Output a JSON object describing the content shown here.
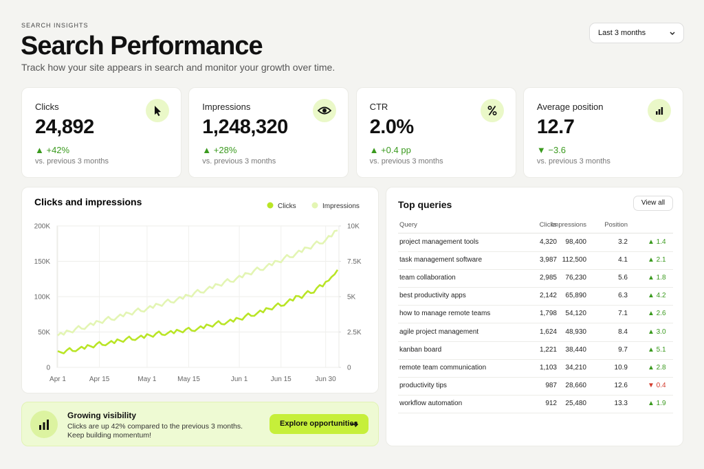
{
  "header": {
    "eyebrow": "SEARCH INSIGHTS",
    "title": "Search Performance",
    "subtitle": "Track how your site appears in search and monitor your growth over time."
  },
  "date_filter": "Last 3 months",
  "kpis": [
    {
      "label": "Clicks",
      "value": "24,892",
      "change": "▲ +42%",
      "comparison": "vs. previous 3 months"
    },
    {
      "label": "Impressions",
      "value": "1,248,320",
      "change": "▲ +28%",
      "comparison": "vs. previous 3 months"
    },
    {
      "label": "CTR",
      "value": "2.0%",
      "change": "▲ +0.4 pp",
      "comparison": "vs. previous 3 months"
    },
    {
      "label": "Average position",
      "value": "12.7",
      "change": "▼ −3.6",
      "comparison": "vs. previous 3 months"
    }
  ],
  "chart_data": {
    "type": "line",
    "title": "Clicks and impressions",
    "categories": [
      "Apr 1",
      null,
      null,
      null,
      null,
      null,
      null,
      null,
      null,
      null,
      null,
      null,
      null,
      null,
      "Apr 15",
      null,
      null,
      null,
      null,
      null,
      null,
      null,
      null,
      null,
      null,
      null,
      null,
      null,
      null,
      null,
      "May 1",
      null,
      null,
      null,
      null,
      null,
      null,
      null,
      null,
      null,
      null,
      null,
      null,
      null,
      "May 15",
      null,
      null,
      null,
      null,
      null,
      null,
      null,
      null,
      null,
      null,
      null,
      null,
      null,
      null,
      null,
      null,
      "Jun 1",
      null,
      null,
      null,
      null,
      null,
      null,
      null,
      null,
      null,
      null,
      null,
      null,
      null,
      "Jun 15",
      null,
      null,
      null,
      null,
      null,
      null,
      null,
      null,
      null,
      null,
      null,
      null,
      null,
      null,
      "Jun 30",
      null,
      null,
      null,
      null
    ],
    "series": [
      {
        "name": "Clicks",
        "color": "#b9e526",
        "axis": "y2",
        "values": [
          1150,
          1070,
          990,
          1210,
          1370,
          1160,
          1140,
          1300,
          1460,
          1310,
          1580,
          1500,
          1410,
          1640,
          1800,
          1590,
          1560,
          1710,
          1870,
          1710,
          1980,
          1890,
          1800,
          2020,
          2180,
          1960,
          1930,
          2090,
          2250,
          2080,
          2350,
          2260,
          2160,
          2390,
          2540,
          2320,
          2280,
          2430,
          2580,
          2410,
          2660,
          2570,
          2470,
          2680,
          2800,
          2600,
          2570,
          2740,
          2910,
          2760,
          3030,
          2960,
          2880,
          3100,
          3270,
          3070,
          3040,
          3210,
          3380,
          3230,
          3500,
          3430,
          3370,
          3620,
          3810,
          3640,
          3640,
          3830,
          4020,
          3890,
          4190,
          4140,
          4090,
          4340,
          4530,
          4350,
          4380,
          4600,
          4820,
          4720,
          5050,
          5030,
          4900,
          5180,
          5400,
          5250,
          5280,
          5600,
          5820,
          5720,
          6050,
          6130,
          6400,
          6580,
          6900
        ]
      },
      {
        "name": "Impressions",
        "color": "#e3f5b3",
        "axis": "y",
        "values": [
          45000,
          48900,
          46200,
          52100,
          50900,
          49300,
          54600,
          58500,
          54900,
          54200,
          58600,
          62400,
          59800,
          65600,
          64500,
          62700,
          67900,
          71600,
          67800,
          66900,
          71100,
          74800,
          72000,
          77700,
          76400,
          74600,
          79800,
          83400,
          79600,
          78800,
          83000,
          86800,
          84100,
          89900,
          88600,
          86900,
          92200,
          96000,
          92300,
          91600,
          95900,
          99600,
          96900,
          102700,
          101500,
          100000,
          105600,
          109600,
          106100,
          105600,
          110200,
          114200,
          111700,
          117800,
          116800,
          115300,
          120900,
          124900,
          121400,
          120900,
          125500,
          129500,
          127200,
          133400,
          132600,
          131400,
          137100,
          141300,
          138000,
          137700,
          142400,
          146600,
          144400,
          150600,
          149800,
          148500,
          154400,
          158900,
          155800,
          155700,
          160700,
          165100,
          163000,
          169500,
          168900,
          167800,
          173800,
          178200,
          175100,
          175100,
          180000,
          185800,
          185000,
          192800,
          193500
        ]
      }
    ],
    "ylim": [
      0,
      200000
    ],
    "yticks": [
      0,
      {
        "value": 50000,
        "label": "50K"
      },
      {
        "value": 100000,
        "label": "100K"
      },
      {
        "value": 150000,
        "label": "150K"
      },
      {
        "value": 200000,
        "label": "200K"
      }
    ],
    "y2lim": [
      0,
      10000
    ],
    "y2ticks": [
      0,
      {
        "value": 2500,
        "label": "2.5K"
      },
      {
        "value": 5000,
        "label": "5K"
      },
      {
        "value": 7500,
        "label": "7.5K"
      },
      {
        "value": 10000,
        "label": "10K"
      }
    ],
    "grid": true,
    "legend": "top-right"
  },
  "top_queries": {
    "title": "Top queries",
    "button": "View all",
    "columns": [
      "Query",
      "Clicks",
      "Impressions",
      "Position"
    ],
    "rows": [
      [
        "project management tools",
        "4,320",
        "98,400",
        "3.2",
        "▲ 1.4"
      ],
      [
        "task management software",
        "3,987",
        "112,500",
        "4.1",
        "▲ 2.1"
      ],
      [
        "team collaboration",
        "2,985",
        "76,230",
        "5.6",
        "▲ 1.8"
      ],
      [
        "best productivity apps",
        "2,142",
        "65,890",
        "6.3",
        "▲ 4.2"
      ],
      [
        "how to manage remote teams",
        "1,798",
        "54,120",
        "7.1",
        "▲ 2.6"
      ],
      [
        "agile project management",
        "1,624",
        "48,930",
        "8.4",
        "▲ 3.0"
      ],
      [
        "kanban board",
        "1,221",
        "38,440",
        "9.7",
        "▲ 5.1"
      ],
      [
        "remote team communication",
        "1,103",
        "34,210",
        "10.9",
        "▲ 2.8"
      ],
      [
        "productivity tips",
        "987",
        "28,660",
        "12.6",
        "▼ 0.4"
      ],
      [
        "workflow automation",
        "912",
        "25,480",
        "13.3",
        "▲ 1.9"
      ]
    ]
  },
  "banner": {
    "title": "Growing visibility",
    "lines": [
      "Clicks are up 42% compared to the previous 3 months.",
      "Keep building momentum!"
    ],
    "button": "Explore opportunities"
  }
}
